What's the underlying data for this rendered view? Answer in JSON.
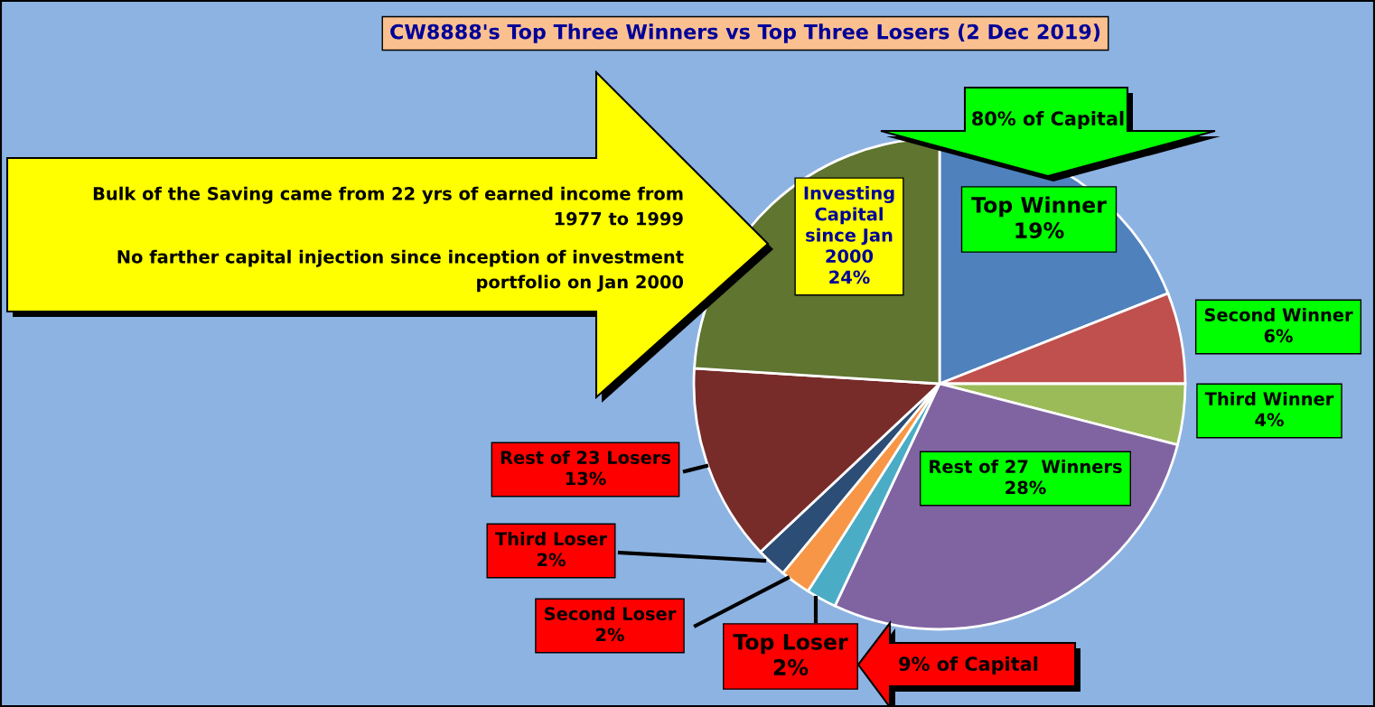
{
  "chart_data": {
    "type": "pie",
    "title": "CW8888's Top Three Winners vs Top Three Losers (2 Dec 2019)",
    "categories": [
      "Top Winner",
      "Second Winner",
      "Third Winner",
      "Rest of 27  Winners",
      "Top Loser",
      "Second Loser",
      "Third Loser",
      "Rest of 23 Losers",
      "Investing Capital since Jan 2000"
    ],
    "values": [
      19,
      6,
      4,
      28,
      2,
      2,
      2,
      13,
      24
    ],
    "colors": [
      "#4f81bd",
      "#c0504d",
      "#9bbb59",
      "#8064a2",
      "#4bacc6",
      "#f79646",
      "#2c4d75",
      "#772c2a",
      "#5f7530"
    ],
    "value_labels": [
      "19%",
      "6%",
      "4%",
      "28%",
      "2%",
      "2%",
      "2%",
      "13%",
      "24%"
    ],
    "annotations": [
      "80% of Capital",
      "9% of Capital",
      "Bulk of the Saving came from 22 yrs of earned income from 1977 to 1999",
      "No farther capital injection since inception of investment portfolio on Jan 2000"
    ]
  }
}
